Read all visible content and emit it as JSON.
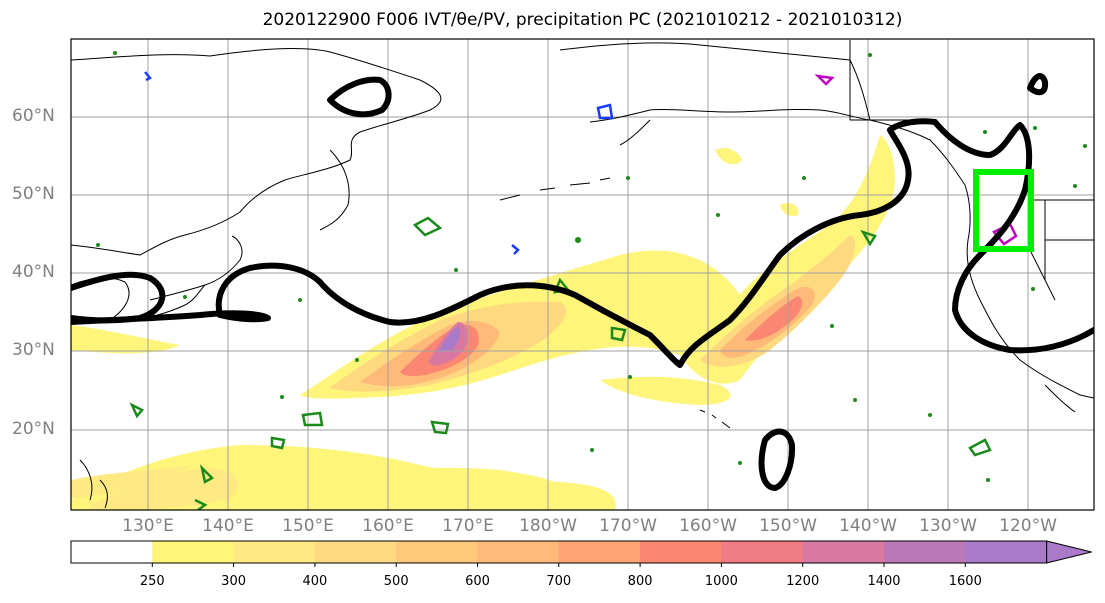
{
  "title": "2020122900 F006 IVT/θe/PV, precipitation PC (2021010212 - 2021010312)",
  "map": {
    "lat_labels": [
      "60°N",
      "50°N",
      "40°N",
      "30°N",
      "20°N"
    ],
    "lon_labels": [
      "130°E",
      "140°E",
      "150°E",
      "160°E",
      "170°E",
      "180°W",
      "170°W",
      "160°W",
      "150°W",
      "140°W",
      "130°W",
      "120°W"
    ]
  },
  "colorbar": {
    "ticks": [
      "250",
      "300",
      "400",
      "500",
      "600",
      "700",
      "800",
      "1000",
      "1200",
      "1400",
      "1600"
    ],
    "colors": [
      "#ffffff",
      "#fff57a",
      "#ffe983",
      "#ffd980",
      "#ffc97c",
      "#ffb978",
      "#ffa474",
      "#fb8773",
      "#ef7c84",
      "#d978a0",
      "#bc78b6",
      "#a97ac7"
    ]
  },
  "chart_data": {
    "type": "heatmap",
    "title": "2020122900 F006 IVT/θe/PV, precipitation PC (2021010212 - 2021010312)",
    "colorbar_levels": [
      250,
      300,
      400,
      500,
      600,
      700,
      800,
      1000,
      1200,
      1400,
      1600
    ],
    "lon_range": [
      "120°E",
      "110°W"
    ],
    "lat_range": [
      "10°N",
      "70°N"
    ],
    "features": {
      "ivt_maxima": [
        {
          "lon": "168°E",
          "lat": 31,
          "level_range": "1400-1600"
        },
        {
          "lon": "150°W",
          "lat": 35,
          "level_range": "1000-1200"
        }
      ],
      "green_box": {
        "lon": [
          "125°W",
          "118°W"
        ],
        "lat": [
          43,
          53
        ]
      }
    }
  }
}
